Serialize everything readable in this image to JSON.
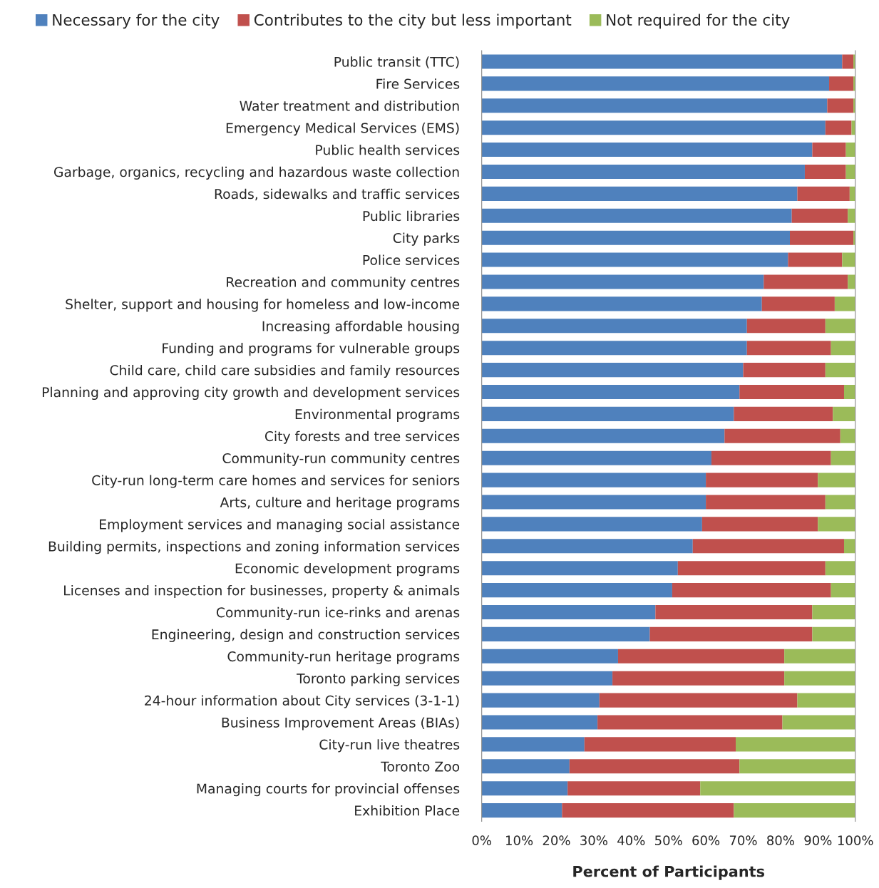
{
  "chart_data": {
    "type": "bar",
    "orientation": "horizontal",
    "stacked": true,
    "xlabel": "Percent of Participants",
    "categories": [
      "Public transit (TTC)",
      "Fire Services",
      "Water treatment and distribution",
      "Emergency Medical Services (EMS)",
      "Public health services",
      "Garbage, organics, recycling and hazardous waste collection",
      "Roads, sidewalks and traffic services",
      "Public libraries",
      "City parks",
      "Police services",
      "Recreation and community centres",
      "Shelter, support and housing for homeless and low-income",
      "Increasing affordable housing",
      "Funding and programs for vulnerable groups",
      "Child care, child care subsidies and family resources",
      "Planning and approving city growth and development services",
      "Environmental programs",
      "City forests and tree services",
      "Community-run community centres",
      "City-run long-term care homes and services for seniors",
      "Arts, culture and heritage programs",
      "Employment services and managing social assistance",
      "Building permits, inspections and zoning information services",
      "Economic development programs",
      "Licenses and inspection for businesses, property & animals",
      "Community-run ice-rinks and arenas",
      "Engineering, design and construction services",
      "Community-run heritage programs",
      "Toronto parking services",
      "24-hour information about City services (3-1-1)",
      "Business Improvement Areas (BIAs)",
      "City-run live theatres",
      "Toronto Zoo",
      "Managing courts for provincial offenses",
      "Exhibition Place"
    ],
    "series": [
      {
        "name": "Necessary for the city",
        "color": "#4f81bd",
        "values": [
          96.5,
          93,
          92.5,
          92,
          88.5,
          86.5,
          84.5,
          83,
          82.5,
          82,
          75.5,
          75,
          71,
          71,
          70,
          69,
          67.5,
          65,
          61.5,
          60,
          60,
          59,
          56.5,
          52.5,
          51,
          46.5,
          45,
          36.5,
          35,
          31.5,
          31,
          27.5,
          23.5,
          23,
          21.5
        ]
      },
      {
        "name": "Contributes to the city but less important",
        "color": "#c0504d",
        "values": [
          3,
          6.5,
          7,
          7,
          9,
          11,
          14,
          15,
          17,
          14.5,
          22.5,
          19.5,
          21,
          22.5,
          22,
          28,
          26.5,
          31,
          32,
          30,
          32,
          31,
          40.5,
          39.5,
          42.5,
          42,
          43.5,
          44.5,
          46,
          53,
          49.5,
          40.5,
          45.5,
          35.5,
          46
        ]
      },
      {
        "name": "Not required for the city",
        "color": "#9bbb59",
        "values": [
          0.5,
          0.5,
          0.5,
          1,
          2.5,
          2.5,
          1.5,
          2,
          0.5,
          3.5,
          2,
          5.5,
          8,
          6.5,
          8,
          3,
          6,
          4,
          6.5,
          10,
          8,
          10,
          3,
          8,
          6.5,
          11.5,
          11.5,
          19,
          19,
          15.5,
          19.5,
          32,
          31,
          41.5,
          32.5
        ]
      }
    ],
    "xlim": [
      0,
      100
    ],
    "xticks": [
      {
        "value": 0,
        "label": "0%"
      },
      {
        "value": 10,
        "label": "10%"
      },
      {
        "value": 20,
        "label": "20%"
      },
      {
        "value": 30,
        "label": "30%"
      },
      {
        "value": 40,
        "label": "40%"
      },
      {
        "value": 50,
        "label": "50%"
      },
      {
        "value": 60,
        "label": "60%"
      },
      {
        "value": 70,
        "label": "70%"
      },
      {
        "value": 80,
        "label": "80%"
      },
      {
        "value": 90,
        "label": "90%"
      },
      {
        "value": 100,
        "label": "100%"
      }
    ],
    "grid": false,
    "legend": "top"
  }
}
